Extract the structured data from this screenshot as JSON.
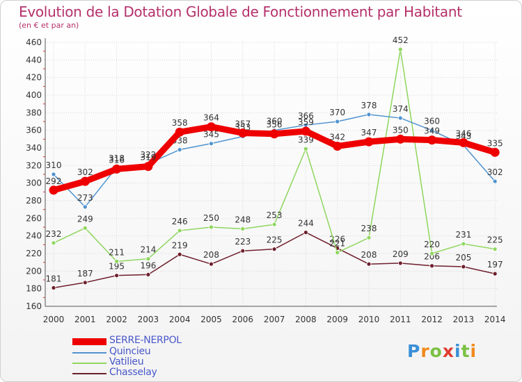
{
  "chart_data": {
    "type": "line",
    "title": "Evolution de la Dotation Globale de Fonctionnement par Habitant",
    "subtitle": "(en € et par an)",
    "xlabel": "",
    "ylabel": "",
    "ylim": [
      160,
      460
    ],
    "yticks": [
      160,
      180,
      200,
      220,
      240,
      260,
      280,
      300,
      320,
      340,
      360,
      380,
      400,
      420,
      440,
      460
    ],
    "categories": [
      "2000",
      "2001",
      "2002",
      "2003",
      "2004",
      "2005",
      "2006",
      "2007",
      "2008",
      "2009",
      "2010",
      "2011",
      "2012",
      "2013",
      "2014"
    ],
    "series": [
      {
        "name": "Chasselay",
        "color": "#6e1f2c",
        "values": [
          181,
          187,
          195,
          196,
          219,
          208,
          223,
          225,
          244,
          226,
          208,
          209,
          206,
          205,
          197
        ]
      },
      {
        "name": "Vatilieu",
        "color": "#8fd65e",
        "values": [
          232,
          249,
          211,
          214,
          246,
          250,
          248,
          253,
          339,
          221,
          238,
          452,
          220,
          231,
          225
        ]
      },
      {
        "name": "Quincieu",
        "color": "#4f93d0",
        "values": [
          310,
          273,
          318,
          322,
          338,
          345,
          353,
          360,
          366,
          370,
          378,
          374,
          360,
          343,
          302
        ]
      },
      {
        "name": "SERRE-NERPOL",
        "color": "#ee0000",
        "values": [
          292,
          302,
          316,
          319,
          358,
          364,
          357,
          356,
          359,
          342,
          347,
          350,
          349,
          346,
          335
        ]
      }
    ],
    "legend_position": "bottom-left"
  },
  "legend": [
    {
      "name": "SERRE-NERPOL",
      "color": "#ee0000"
    },
    {
      "name": "Quincieu",
      "color": "#4f93d0"
    },
    {
      "name": "Vatilieu",
      "color": "#8fd65e"
    },
    {
      "name": "Chasselay",
      "color": "#6e1f2c"
    }
  ],
  "brand": {
    "letters": [
      "P",
      "r",
      "o",
      "x",
      "i",
      "t",
      "i"
    ],
    "colors": [
      "#3a8fd6",
      "#f08a1c",
      "#7bc143",
      "#e03c31",
      "#3a8fd6",
      "#7bc143",
      "#f08a1c"
    ]
  }
}
